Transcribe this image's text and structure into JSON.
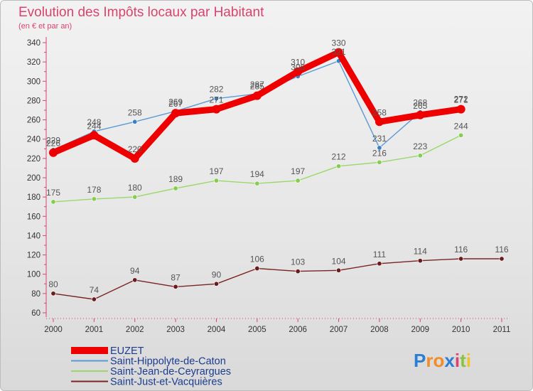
{
  "chart_data": {
    "type": "line",
    "title": "Evolution des Impôts locaux par Habitant",
    "subtitle": "(en € et par an)",
    "xlabel": "",
    "ylabel": "",
    "categories": [
      "2000",
      "2001",
      "2002",
      "2003",
      "2004",
      "2005",
      "2006",
      "2007",
      "2008",
      "2009",
      "2010",
      "2011"
    ],
    "ylim": [
      60,
      340
    ],
    "yticks": [
      60,
      80,
      100,
      120,
      140,
      160,
      180,
      200,
      220,
      240,
      260,
      280,
      300,
      320,
      340
    ],
    "series": [
      {
        "name": "Saint-Hippolyte-de-Caton",
        "color": "#5b9bd5",
        "marker": "#3a7fc4",
        "values": [
          229,
          248,
          258,
          269,
          282,
          287,
          305,
          321,
          231,
          268,
          272,
          null
        ]
      },
      {
        "name": "Saint-Jean-de-Ceyrargues",
        "color": "#9ad86a",
        "marker": "#86cc4f",
        "values": [
          175,
          178,
          180,
          189,
          197,
          194,
          197,
          212,
          216,
          223,
          244,
          null
        ]
      },
      {
        "name": "Saint-Just-et-Vacquières",
        "color": "#7b2424",
        "marker": "#6a1c1c",
        "values": [
          80,
          74,
          94,
          87,
          90,
          106,
          103,
          104,
          111,
          114,
          116,
          116
        ]
      },
      {
        "name": "EUZET",
        "color": "#ee0000",
        "marker": "#ee0000",
        "values": [
          226,
          244,
          220,
          267,
          271,
          285,
          310,
          330,
          258,
          265,
          271,
          null
        ]
      }
    ],
    "legend_order": [
      "EUZET",
      "Saint-Hippolyte-de-Caton",
      "Saint-Jean-de-Ceyrargues",
      "Saint-Just-et-Vacquières"
    ],
    "legend_position": "bottom-left",
    "grid": false
  },
  "branding": {
    "logo_letters": [
      "P",
      "r",
      "o",
      "x",
      "i",
      "t",
      "i"
    ],
    "logo_colors": [
      "#2a7fd4",
      "#f28c28",
      "#f28c28",
      "#2a7fd4",
      "#d9436d",
      "#8ac43f",
      "#f2c12e"
    ]
  }
}
